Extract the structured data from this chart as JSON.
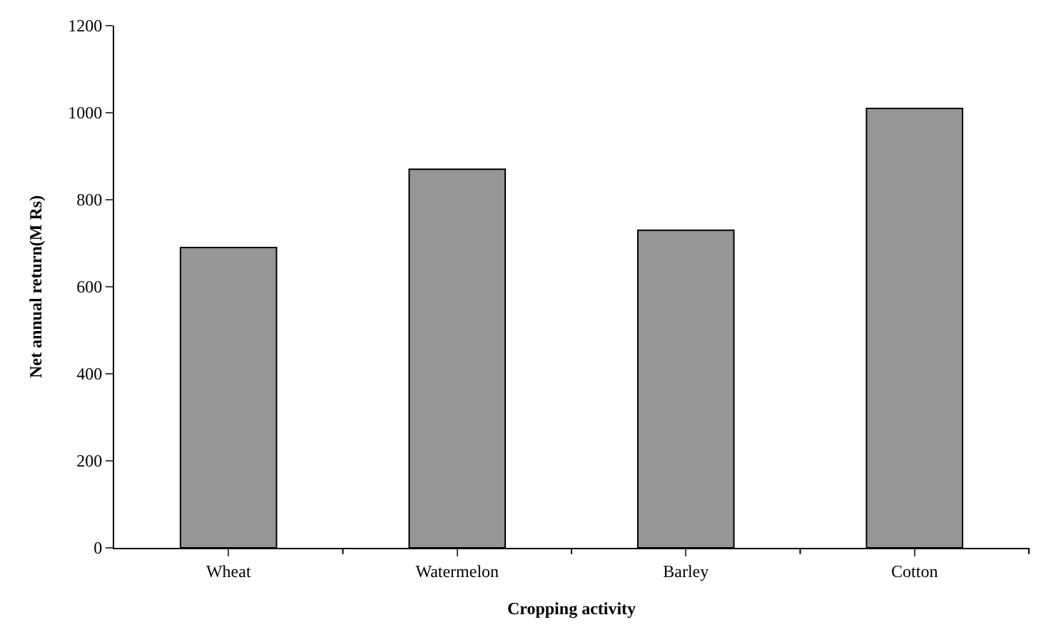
{
  "chart_data": {
    "type": "bar",
    "xlabel": "Cropping activity",
    "ylabel": "Net annual return(M Rs)",
    "categories": [
      "Wheat",
      "Watermelon",
      "Barley",
      "Cotton"
    ],
    "values": [
      690,
      870,
      730,
      1010
    ],
    "color": "#969696",
    "ylim": [
      0,
      1200
    ],
    "yticks": [
      0,
      200,
      400,
      600,
      800,
      1000,
      1200
    ],
    "grid": false
  }
}
